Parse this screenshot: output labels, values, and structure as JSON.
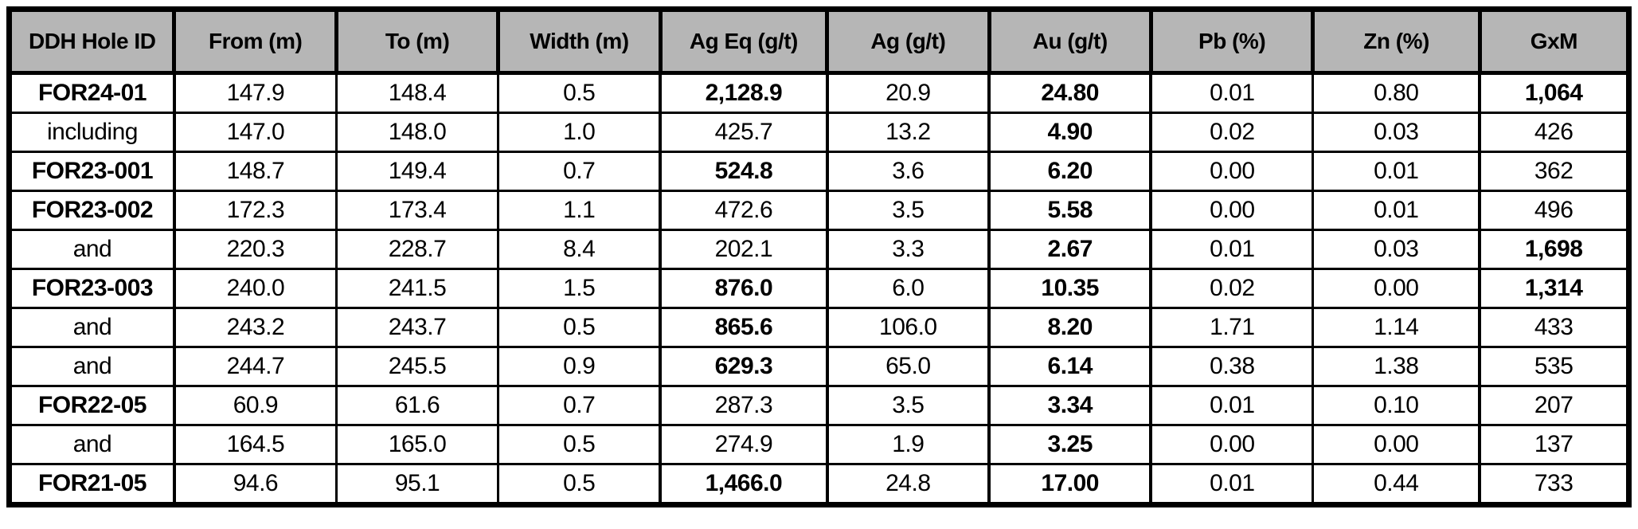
{
  "chart_data": {
    "type": "table",
    "columns": [
      "DDH Hole ID",
      "From (m)",
      "To (m)",
      "Width (m)",
      "Ag Eq (g/t)",
      "Ag (g/t)",
      "Au (g/t)",
      "Pb (%)",
      "Zn (%)",
      "GxM"
    ],
    "rows": [
      {
        "cells": [
          "FOR24-01",
          "147.9",
          "148.4",
          "0.5",
          "2,128.9",
          "20.9",
          "24.80",
          "0.01",
          "0.80",
          "1,064"
        ],
        "bold": [
          true,
          false,
          false,
          false,
          true,
          false,
          true,
          false,
          false,
          true
        ]
      },
      {
        "cells": [
          "including",
          "147.0",
          "148.0",
          "1.0",
          "425.7",
          "13.2",
          "4.90",
          "0.02",
          "0.03",
          "426"
        ],
        "bold": [
          false,
          false,
          false,
          false,
          false,
          false,
          true,
          false,
          false,
          false
        ]
      },
      {
        "cells": [
          "FOR23-001",
          "148.7",
          "149.4",
          "0.7",
          "524.8",
          "3.6",
          "6.20",
          "0.00",
          "0.01",
          "362"
        ],
        "bold": [
          true,
          false,
          false,
          false,
          true,
          false,
          true,
          false,
          false,
          false
        ]
      },
      {
        "cells": [
          "FOR23-002",
          "172.3",
          "173.4",
          "1.1",
          "472.6",
          "3.5",
          "5.58",
          "0.00",
          "0.01",
          "496"
        ],
        "bold": [
          true,
          false,
          false,
          false,
          false,
          false,
          true,
          false,
          false,
          false
        ]
      },
      {
        "cells": [
          "and",
          "220.3",
          "228.7",
          "8.4",
          "202.1",
          "3.3",
          "2.67",
          "0.01",
          "0.03",
          "1,698"
        ],
        "bold": [
          false,
          false,
          false,
          false,
          false,
          false,
          true,
          false,
          false,
          true
        ]
      },
      {
        "cells": [
          "FOR23-003",
          "240.0",
          "241.5",
          "1.5",
          "876.0",
          "6.0",
          "10.35",
          "0.02",
          "0.00",
          "1,314"
        ],
        "bold": [
          true,
          false,
          false,
          false,
          true,
          false,
          true,
          false,
          false,
          true
        ]
      },
      {
        "cells": [
          "and",
          "243.2",
          "243.7",
          "0.5",
          "865.6",
          "106.0",
          "8.20",
          "1.71",
          "1.14",
          "433"
        ],
        "bold": [
          false,
          false,
          false,
          false,
          true,
          false,
          true,
          false,
          false,
          false
        ]
      },
      {
        "cells": [
          "and",
          "244.7",
          "245.5",
          "0.9",
          "629.3",
          "65.0",
          "6.14",
          "0.38",
          "1.38",
          "535"
        ],
        "bold": [
          false,
          false,
          false,
          false,
          true,
          false,
          true,
          false,
          false,
          false
        ]
      },
      {
        "cells": [
          "FOR22-05",
          "60.9",
          "61.6",
          "0.7",
          "287.3",
          "3.5",
          "3.34",
          "0.01",
          "0.10",
          "207"
        ],
        "bold": [
          true,
          false,
          false,
          false,
          false,
          false,
          true,
          false,
          false,
          false
        ]
      },
      {
        "cells": [
          "and",
          "164.5",
          "165.0",
          "0.5",
          "274.9",
          "1.9",
          "3.25",
          "0.00",
          "0.00",
          "137"
        ],
        "bold": [
          false,
          false,
          false,
          false,
          false,
          false,
          true,
          false,
          false,
          false
        ]
      },
      {
        "cells": [
          "FOR21-05",
          "94.6",
          "95.1",
          "0.5",
          "1,466.0",
          "24.8",
          "17.00",
          "0.01",
          "0.44",
          "733"
        ],
        "bold": [
          true,
          false,
          false,
          false,
          true,
          false,
          true,
          false,
          false,
          false
        ]
      }
    ],
    "layout": {
      "header_position": "top",
      "grid": true,
      "emphasized_columns": [
        0,
        4,
        6,
        9
      ],
      "column_width_pct": [
        10.2,
        10.0,
        10.0,
        10.0,
        10.3,
        10.0,
        10.0,
        10.0,
        10.3,
        9.2
      ]
    }
  },
  "colors": {
    "header_bg": "#b6b6b6",
    "border": "#000000",
    "text": "#000000",
    "cell_bg": "#ffffff"
  }
}
